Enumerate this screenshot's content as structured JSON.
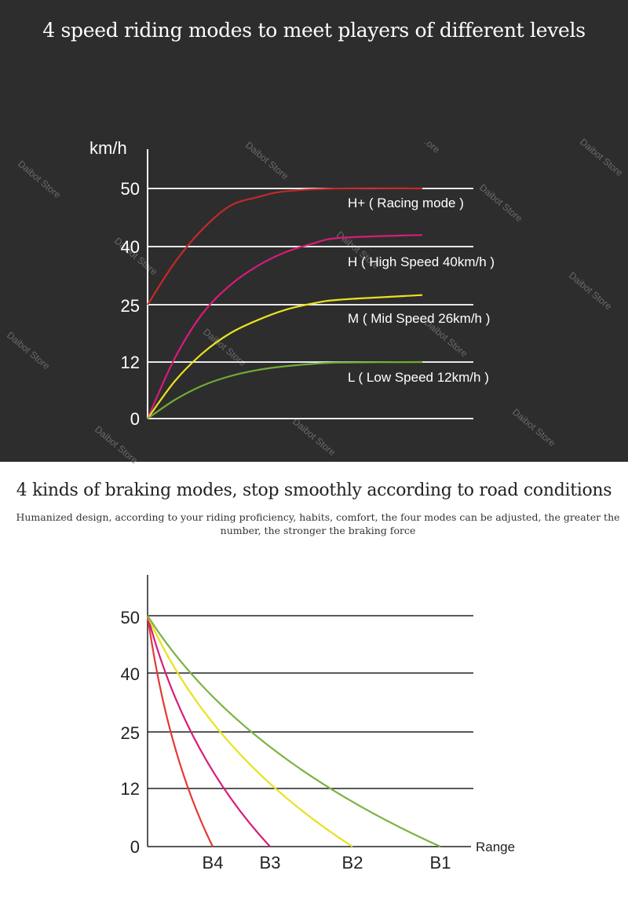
{
  "top": {
    "title": "4 speed riding modes to meet players of different levels",
    "watermark": "Daibot Store",
    "watermark_fragment": ".ore"
  },
  "bottom": {
    "title": "4 kinds of braking modes, stop smoothly according to road conditions",
    "subtitle": "Humanized design, according to your riding proficiency, habits, comfort, the four modes can be adjusted, the greater the number, the stronger the braking force"
  },
  "chart_data": [
    {
      "type": "line",
      "ylabel": "km/h",
      "y_ticks": [
        "50",
        "40",
        "25",
        "12",
        "0"
      ],
      "y_tick_values": [
        50,
        40,
        25,
        12,
        0
      ],
      "grid": true,
      "x_range": [
        0,
        1
      ],
      "series": [
        {
          "name": "H+ ( Racing mode )",
          "color": "#c62828",
          "start": 25,
          "end": 50,
          "points": [
            [
              0,
              25
            ],
            [
              0.1,
              36
            ],
            [
              0.2,
              43
            ],
            [
              0.3,
              47
            ],
            [
              0.4,
              48.5
            ],
            [
              0.5,
              49.5
            ],
            [
              0.7,
              50
            ],
            [
              1,
              50
            ]
          ]
        },
        {
          "name": "H ( High Speed 40km/h )",
          "color": "#d81b7a",
          "start": 0,
          "end": 42,
          "points": [
            [
              0,
              0
            ],
            [
              0.1,
              13
            ],
            [
              0.2,
              23
            ],
            [
              0.3,
              30
            ],
            [
              0.4,
              35
            ],
            [
              0.5,
              38.5
            ],
            [
              0.6,
              40.5
            ],
            [
              0.7,
              41.5
            ],
            [
              1,
              42
            ]
          ]
        },
        {
          "name": "M ( Mid Speed 26km/h )",
          "color": "#e8e221",
          "start": 0,
          "end": 27.5,
          "points": [
            [
              0,
              0
            ],
            [
              0.1,
              8
            ],
            [
              0.2,
              14
            ],
            [
              0.3,
              18.5
            ],
            [
              0.4,
              21.5
            ],
            [
              0.5,
              23.8
            ],
            [
              0.6,
              25.3
            ],
            [
              0.7,
              26.3
            ],
            [
              1,
              27.5
            ]
          ]
        },
        {
          "name": "L ( Low Speed 12km/h )",
          "color": "#72ab34",
          "start": 0,
          "end": 12,
          "points": [
            [
              0,
              0
            ],
            [
              0.1,
              4
            ],
            [
              0.2,
              7
            ],
            [
              0.3,
              9
            ],
            [
              0.4,
              10.3
            ],
            [
              0.5,
              11.1
            ],
            [
              0.6,
              11.6
            ],
            [
              0.7,
              11.9
            ],
            [
              1,
              12
            ]
          ]
        }
      ]
    },
    {
      "type": "line",
      "xlabel": "Range",
      "y_ticks": [
        "50",
        "40",
        "25",
        "12",
        "0"
      ],
      "y_tick_values": [
        50,
        40,
        25,
        12,
        0
      ],
      "x_ticks": [
        "B4",
        "B3",
        "B2",
        "B1"
      ],
      "grid": true,
      "series": [
        {
          "color": "#e53935",
          "start": 50,
          "end_category": "B4"
        },
        {
          "color": "#d81b7a",
          "start": 50,
          "end_category": "B3"
        },
        {
          "color": "#e8e221",
          "start": 50,
          "end_category": "B2"
        },
        {
          "color": "#7cb342",
          "start": 50,
          "end_category": "B1"
        }
      ]
    }
  ]
}
